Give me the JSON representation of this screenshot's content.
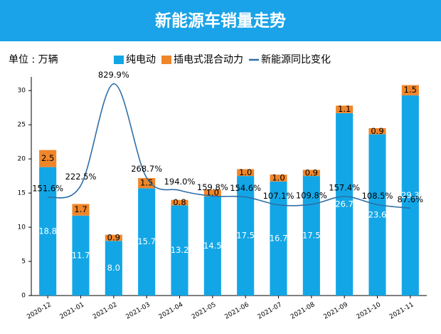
{
  "chart_data": {
    "type": "bar-line",
    "title": "新能源车销量走势",
    "unit_label": "单位 : 万辆",
    "categories": [
      "2020-12",
      "2021-01",
      "2021-02",
      "2021-03",
      "2021-04",
      "2021-05",
      "2021-06",
      "2021-07",
      "2021-08",
      "2021-09",
      "2021-10",
      "2021-11"
    ],
    "series": [
      {
        "name": "纯电动",
        "color": "#13a6e6",
        "stacked": true,
        "values": [
          18.8,
          11.7,
          8.0,
          15.7,
          13.2,
          14.5,
          17.5,
          16.7,
          17.5,
          26.7,
          23.6,
          29.3
        ],
        "value_labels": [
          "18.8",
          "11.7",
          "8.0",
          "15.7",
          "13.2",
          "14.5",
          "17.5",
          "16.7",
          "17.5",
          "26.7",
          "23.6",
          "29.3"
        ]
      },
      {
        "name": "插电式混合动力",
        "color": "#f0862a",
        "stacked": true,
        "values": [
          2.5,
          1.7,
          0.9,
          1.5,
          0.8,
          1.0,
          1.0,
          1.0,
          0.9,
          1.1,
          0.9,
          1.5
        ],
        "value_labels": [
          "2.5",
          "1.7",
          "0.9",
          "1.5",
          "0.8",
          "1.0",
          "1.0",
          "1.0",
          "0.9",
          "1.1",
          "0.9",
          "1.5"
        ]
      },
      {
        "name": "新能源同比变化",
        "color": "#2e6fa7",
        "axis": "y2",
        "kind": "line",
        "values": [
          151.6,
          222.5,
          829.9,
          268.7,
          194.0,
          159.8,
          154.6,
          107.1,
          109.8,
          157.4,
          108.5,
          87.6
        ],
        "value_labels": [
          "151.6%",
          "222.5%",
          "829.9%",
          "268.7%",
          "194.0%",
          "159.8%",
          "154.6%",
          "107.1%",
          "109.8%",
          "157.4%",
          "108.5%",
          "87.6%"
        ]
      }
    ],
    "ylim": [
      0,
      32
    ],
    "yticks": [
      0,
      5,
      10,
      15,
      20,
      25,
      30
    ],
    "y2lim": [
      -434,
      871
    ]
  }
}
